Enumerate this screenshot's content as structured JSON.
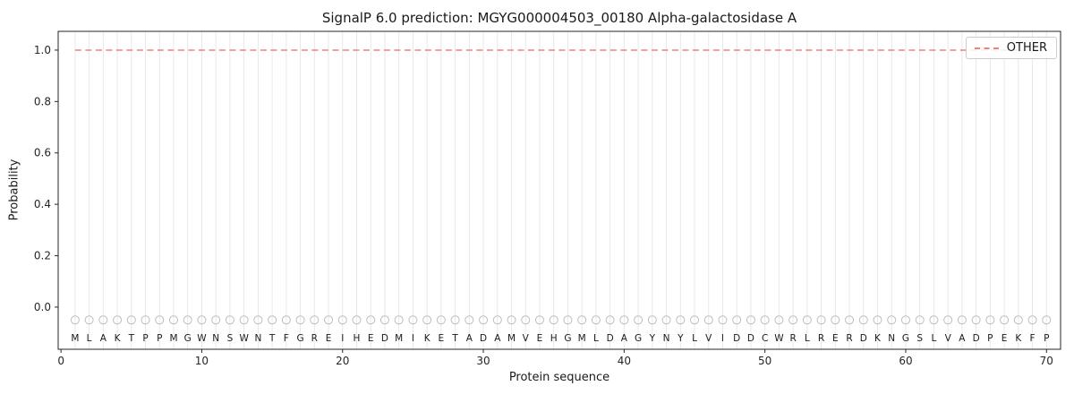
{
  "chart_data": {
    "type": "line",
    "title": "SignalP 6.0 prediction: MGYG000004503_00180 Alpha-galactosidase A",
    "xlabel": "Protein sequence",
    "ylabel": "Probability",
    "xlim": [
      -0.2,
      71.0
    ],
    "ylim": [
      -0.164,
      1.073
    ],
    "x_ticks": [
      0,
      10,
      20,
      30,
      40,
      50,
      60,
      70
    ],
    "y_ticks": [
      0.0,
      0.2,
      0.4,
      0.6,
      0.8,
      1.0
    ],
    "grid": "vertical line at every residue position",
    "sequence": "MLAKTPPMGWNSWNTFGREIHEDMIKETADAMVEHGMLDAGYNYLVIDDCWRLRERDKNGSLVADPEKFP",
    "series": [
      {
        "name": "OTHER",
        "x_range": [
          1,
          70
        ],
        "y_constant": 1.0,
        "color": "#f08080",
        "linestyle": "dashed"
      }
    ],
    "residue_markers": {
      "shape": "open-circle",
      "y_value": -0.05,
      "color": "#bdbdbd"
    },
    "residue_letters_y_value": -0.118,
    "legend": {
      "position": "upper right",
      "entries": [
        {
          "label": "OTHER",
          "color": "#f08080",
          "linestyle": "dashed"
        }
      ]
    },
    "colors": {
      "grid": "#e6e6e6",
      "frame": "#262626",
      "tick_text": "#262626",
      "letter_text": "#1a1a1a",
      "background": "#ffffff"
    }
  }
}
